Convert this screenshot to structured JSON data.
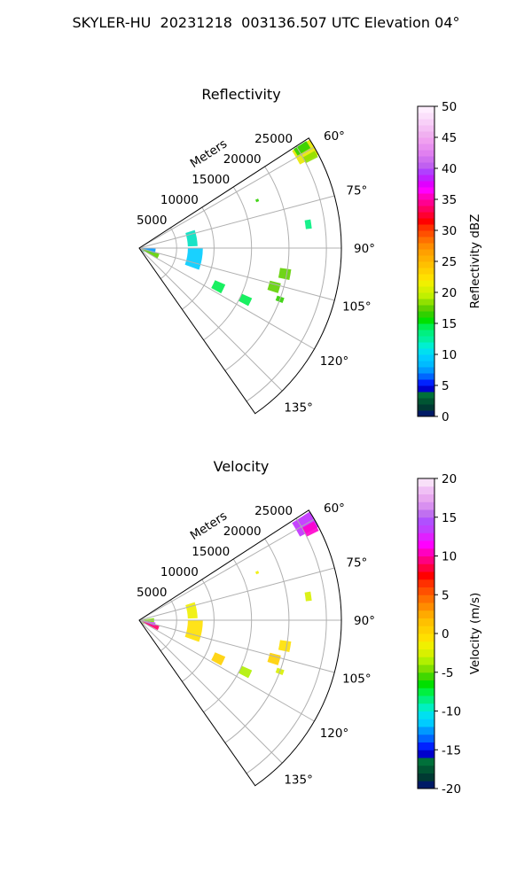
{
  "suptitle": "SKYLER-HU  20231218  003136.507 UTC Elevation 04°",
  "chart_data": [
    {
      "type": "polar-sector",
      "title": "Reflectivity",
      "radial_label": "Meters",
      "r_ticks": [
        "5000",
        "10000",
        "15000",
        "20000",
        "25000"
      ],
      "theta_ticks": [
        "60°",
        "75°",
        "90°",
        "105°",
        "120°",
        "135°"
      ],
      "theta_range_deg": [
        57,
        145
      ],
      "r_max": 27000,
      "colorbar": {
        "label": "Reflectivity dBZ",
        "range": [
          0,
          50
        ],
        "ticks": [
          "0",
          "5",
          "10",
          "15",
          "20",
          "25",
          "30",
          "35",
          "40",
          "45",
          "50"
        ],
        "colors": [
          "#001a66",
          "#003a33",
          "#005533",
          "#00703a",
          "#0000cc",
          "#0022ff",
          "#0066ff",
          "#0099ff",
          "#00bbff",
          "#00ccff",
          "#00e0f0",
          "#00f0d0",
          "#00f0a0",
          "#00f080",
          "#00ee50",
          "#00e000",
          "#30d000",
          "#60d000",
          "#90e000",
          "#c0f000",
          "#d8f000",
          "#f0f000",
          "#ffe000",
          "#ffd000",
          "#ffc000",
          "#ffb000",
          "#ffa000",
          "#ff8c00",
          "#ff7000",
          "#ff5000",
          "#ff3000",
          "#ff0000",
          "#ff0030",
          "#ff0060",
          "#ff0090",
          "#ff00c0",
          "#ff00ff",
          "#e000ff",
          "#c020ff",
          "#b040ff",
          "#c060f0",
          "#d070f0",
          "#e080f0",
          "#e890f0",
          "#f0a0f0",
          "#f0b0f0",
          "#f5c0f5",
          "#f8d0f8",
          "#fbe0fb",
          "#ffeeff"
        ]
      },
      "echo_regions": [
        {
          "az": 60,
          "range_m": [
            24200,
            27000
          ],
          "halfwidth_deg": 2.5,
          "color": "#e8e800"
        },
        {
          "az": 58.5,
          "range_m": [
            24500,
            26500
          ],
          "halfwidth_deg": 1.2,
          "color": "#30d000"
        },
        {
          "az": 62,
          "range_m": [
            25000,
            26800
          ],
          "halfwidth_deg": 1.0,
          "color": "#90e000"
        },
        {
          "az": 68,
          "range_m": [
            16800,
            17200
          ],
          "halfwidth_deg": 0.6,
          "color": "#30d000"
        },
        {
          "az": 82,
          "range_m": [
            22400,
            23200
          ],
          "halfwidth_deg": 1.5,
          "color": "#00f080"
        },
        {
          "az": 100,
          "range_m": [
            19000,
            20500
          ],
          "halfwidth_deg": 2.0,
          "color": "#60d000"
        },
        {
          "az": 106,
          "range_m": [
            18000,
            19500
          ],
          "halfwidth_deg": 2.0,
          "color": "#60d000"
        },
        {
          "az": 110,
          "range_m": [
            19500,
            20500
          ],
          "halfwidth_deg": 1.0,
          "color": "#30d000"
        },
        {
          "az": 116,
          "range_m": [
            15000,
            16500
          ],
          "halfwidth_deg": 2.0,
          "color": "#00ee50"
        },
        {
          "az": 116,
          "range_m": [
            11000,
            12500
          ],
          "halfwidth_deg": 3.0,
          "color": "#00ee50"
        },
        {
          "az": 100,
          "range_m": [
            6500,
            8500
          ],
          "halfwidth_deg": 10.0,
          "color": "#00ccff"
        },
        {
          "az": 80,
          "range_m": [
            6500,
            7800
          ],
          "halfwidth_deg": 8.0,
          "color": "#00e0c0"
        },
        {
          "az": 113,
          "range_m": [
            0,
            2800
          ],
          "halfwidth_deg": 8.0,
          "color": "#60d000"
        },
        {
          "az": 100,
          "range_m": [
            0,
            2200
          ],
          "halfwidth_deg": 8.0,
          "color": "#0099ff"
        },
        {
          "az": 130,
          "range_m": [
            0,
            800
          ],
          "halfwidth_deg": 6.0,
          "color": "#00f0a0"
        }
      ]
    },
    {
      "type": "polar-sector",
      "title": "Velocity",
      "radial_label": "Meters",
      "r_ticks": [
        "5000",
        "10000",
        "15000",
        "20000",
        "25000"
      ],
      "theta_ticks": [
        "60°",
        "75°",
        "90°",
        "105°",
        "120°",
        "135°"
      ],
      "theta_range_deg": [
        57,
        145
      ],
      "r_max": 27000,
      "colorbar": {
        "label": "Velocity (m/s)",
        "range": [
          -20,
          20
        ],
        "ticks": [
          "-20",
          "-15",
          "-10",
          "-5",
          "0",
          "5",
          "10",
          "15",
          "20"
        ],
        "colors": [
          "#001a66",
          "#003a33",
          "#005533",
          "#00703a",
          "#0000cc",
          "#0022ff",
          "#0066ff",
          "#0099ff",
          "#00ccff",
          "#00e0f0",
          "#00f0c0",
          "#00f080",
          "#00f040",
          "#00e000",
          "#40d800",
          "#80e000",
          "#b0f000",
          "#d8f000",
          "#f0f000",
          "#ffe000",
          "#ffd000",
          "#ffc000",
          "#ffaa00",
          "#ff8c00",
          "#ff7000",
          "#ff5000",
          "#ff3000",
          "#ff0000",
          "#ff0040",
          "#ff0080",
          "#ff00c0",
          "#ff00ff",
          "#e020ff",
          "#c040ff",
          "#b050ff",
          "#c070f0",
          "#d890f0",
          "#e8a8f0",
          "#f0c0f5",
          "#f8e0f8"
        ]
      },
      "echo_regions": [
        {
          "az": 60,
          "range_m": [
            24200,
            27000
          ],
          "halfwidth_deg": 2.5,
          "color": "#c030ff"
        },
        {
          "az": 62,
          "range_m": [
            25000,
            26800
          ],
          "halfwidth_deg": 1.5,
          "color": "#ff00cc"
        },
        {
          "az": 68,
          "range_m": [
            16800,
            17200
          ],
          "halfwidth_deg": 0.6,
          "color": "#f0f000"
        },
        {
          "az": 82,
          "range_m": [
            22400,
            23200
          ],
          "halfwidth_deg": 1.5,
          "color": "#d8f000"
        },
        {
          "az": 100,
          "range_m": [
            19000,
            20500
          ],
          "halfwidth_deg": 2.0,
          "color": "#ffe000"
        },
        {
          "az": 106,
          "range_m": [
            18000,
            19500
          ],
          "halfwidth_deg": 2.0,
          "color": "#ffd000"
        },
        {
          "az": 110,
          "range_m": [
            19500,
            20500
          ],
          "halfwidth_deg": 1.0,
          "color": "#d8f000"
        },
        {
          "az": 116,
          "range_m": [
            15000,
            16500
          ],
          "halfwidth_deg": 2.0,
          "color": "#b0f000"
        },
        {
          "az": 116,
          "range_m": [
            11000,
            12500
          ],
          "halfwidth_deg": 3.0,
          "color": "#ffd000"
        },
        {
          "az": 100,
          "range_m": [
            6500,
            8500
          ],
          "halfwidth_deg": 10.0,
          "color": "#ffe000"
        },
        {
          "az": 80,
          "range_m": [
            6500,
            7800
          ],
          "halfwidth_deg": 8.0,
          "color": "#f0f000"
        },
        {
          "az": 112,
          "range_m": [
            0,
            2800
          ],
          "halfwidth_deg": 6.0,
          "color": "#ff0066"
        },
        {
          "az": 104,
          "range_m": [
            0,
            2200
          ],
          "halfwidth_deg": 6.0,
          "color": "#c040ff"
        },
        {
          "az": 90,
          "range_m": [
            0,
            2000
          ],
          "halfwidth_deg": 8.0,
          "color": "#80e000"
        },
        {
          "az": 130,
          "range_m": [
            0,
            800
          ],
          "halfwidth_deg": 6.0,
          "color": "#b0f000"
        }
      ]
    }
  ]
}
